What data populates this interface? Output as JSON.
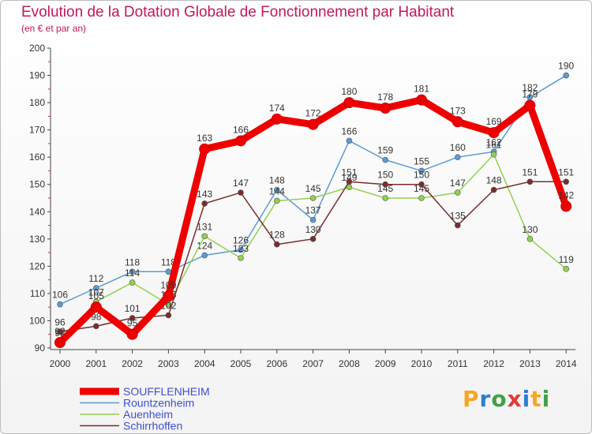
{
  "header": {
    "title": "Evolution de la Dotation Globale de Fonctionnement par Habitant",
    "subtitle": "(en € et par an)"
  },
  "logo": {
    "letters": [
      "P",
      "r",
      "o",
      "x",
      "i",
      "t",
      "i"
    ],
    "colors": [
      "#f5a623",
      "#2e7dd7",
      "#43a047",
      "#e53935",
      "#2e7dd7",
      "#f5a623",
      "#43a047"
    ]
  },
  "chart_data": {
    "type": "line",
    "title": "Evolution de la Dotation Globale de Fonctionnement par Habitant",
    "subtitle": "(en € et par an)",
    "x": [
      "2000",
      "2001",
      "2002",
      "2003",
      "2004",
      "2005",
      "2006",
      "2007",
      "2008",
      "2009",
      "2010",
      "2011",
      "2012",
      "2013",
      "2014"
    ],
    "ylim": [
      90,
      200
    ],
    "yticks": [
      90,
      100,
      110,
      120,
      130,
      140,
      150,
      160,
      170,
      180,
      190,
      200
    ],
    "grid": false,
    "legend_position": "bottom-left",
    "series": [
      {
        "name": "SOUFFLENHEIM",
        "color": "#ee0000",
        "emphasis": true,
        "values": [
          92,
          105,
          95,
          109,
          163,
          166,
          174,
          172,
          180,
          178,
          181,
          173,
          169,
          179,
          142
        ]
      },
      {
        "name": "Rountzenheim",
        "color": "#5b9bd5",
        "values": [
          106,
          112,
          118,
          118,
          124,
          126,
          148,
          137,
          166,
          159,
          155,
          160,
          162,
          182,
          190
        ]
      },
      {
        "name": "Auenheim",
        "color": "#92d050",
        "values": [
          92,
          107,
          114,
          106,
          131,
          123,
          144,
          145,
          149,
          145,
          145,
          147,
          161,
          130,
          119
        ]
      },
      {
        "name": "Schirrhoffen",
        "color": "#7b2c2c",
        "values": [
          96,
          98,
          101,
          102,
          143,
          147,
          128,
          130,
          151,
          150,
          150,
          135,
          148,
          151,
          151
        ]
      }
    ]
  }
}
